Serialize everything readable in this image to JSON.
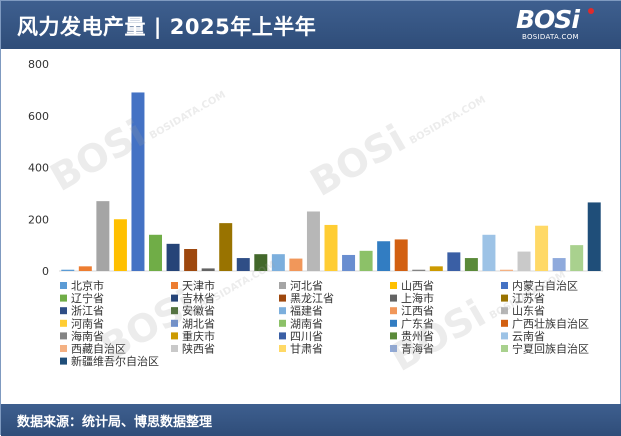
{
  "header": {
    "title": "风力发电产量 | 2025年上半年",
    "logo_text": "BOSi",
    "logo_sub": "BOSIDATA.COM"
  },
  "footer": {
    "source": "数据来源：统计局、博思数据整理"
  },
  "watermark": {
    "text": "BOSi",
    "sub": "BOSIDATA.COM"
  },
  "chart_data": {
    "type": "bar",
    "title": "",
    "xlabel": "",
    "ylabel": "",
    "ylim": [
      0,
      800
    ],
    "yticks": [
      0,
      200,
      400,
      600,
      800
    ],
    "grid": false,
    "legend_position": "bottom",
    "categories": [
      "北京市",
      "天津市",
      "河北省",
      "山西省",
      "内蒙古自治区",
      "辽宁省",
      "吉林省",
      "黑龙江省",
      "上海市",
      "江苏省",
      "浙江省",
      "安徽省",
      "福建省",
      "江西省",
      "山东省",
      "河南省",
      "湖北省",
      "湖南省",
      "广东省",
      "广西壮族自治区",
      "海南省",
      "重庆市",
      "四川省",
      "贵州省",
      "云南省",
      "西藏自治区",
      "陕西省",
      "甘肃省",
      "青海省",
      "宁夏回族自治区",
      "新疆维吾尔自治区"
    ],
    "values": [
      5,
      18,
      270,
      200,
      690,
      140,
      105,
      85,
      10,
      185,
      50,
      65,
      65,
      48,
      230,
      178,
      62,
      78,
      115,
      122,
      5,
      18,
      72,
      50,
      140,
      5,
      75,
      175,
      50,
      100,
      265
    ],
    "colors": [
      "#5b9bd5",
      "#ed7d31",
      "#a5a5a5",
      "#ffc000",
      "#4472c4",
      "#70ad47",
      "#264478",
      "#9e480e",
      "#636363",
      "#997300",
      "#2f4e86",
      "#43682b",
      "#7cafdd",
      "#f1975a",
      "#b7b7b7",
      "#ffcd33",
      "#698ed0",
      "#8cc168",
      "#327dc2",
      "#d26012",
      "#848484",
      "#cc9a00",
      "#3a5fa5",
      "#5a8a39",
      "#9dc3e6",
      "#f4b183",
      "#c9c9c9",
      "#ffd966",
      "#8faadc",
      "#a9d18e",
      "#1f4e79"
    ]
  }
}
